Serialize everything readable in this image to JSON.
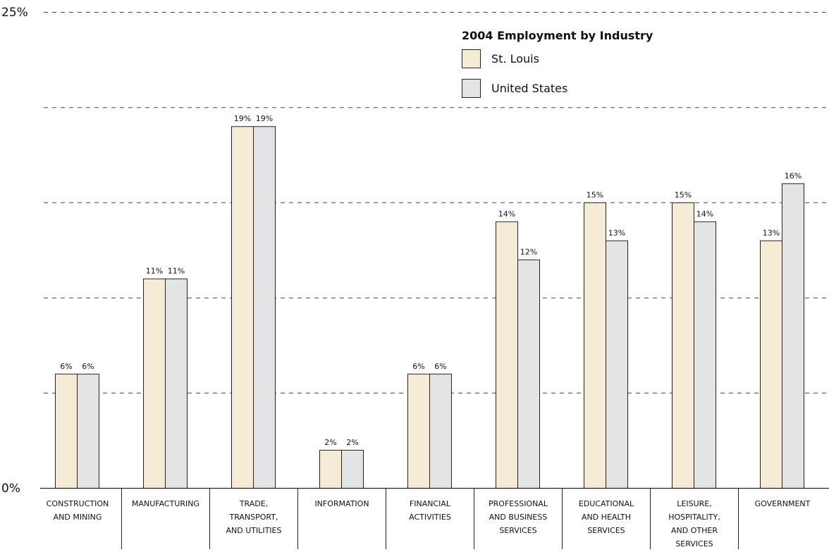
{
  "chart_data": {
    "type": "bar",
    "title": "",
    "xlabel": "",
    "ylabel": "",
    "ylim": [
      0,
      25
    ],
    "y_ticks_labeled": [
      "0%",
      "25%"
    ],
    "grid": "dashed horizontal",
    "legend": {
      "title": "2004 Employment by Industry",
      "placement": "top-right"
    },
    "categories": [
      [
        "CONSTRUCTION",
        "AND MINING"
      ],
      [
        "MANUFACTURING"
      ],
      [
        "TRADE,",
        "TRANSPORT,",
        "AND UTILITIES"
      ],
      [
        "INFORMATION"
      ],
      [
        "FINANCIAL",
        "ACTIVITIES"
      ],
      [
        "PROFESSIONAL",
        "AND BUSINESS",
        "SERVICES"
      ],
      [
        "EDUCATIONAL",
        "AND HEALTH",
        "SERVICES"
      ],
      [
        "LEISURE,",
        "HOSPITALITY,",
        "AND OTHER",
        "SERVICES"
      ],
      [
        "GOVERNMENT"
      ]
    ],
    "series": [
      {
        "name": "St. Louis",
        "color": "#f6ecd5",
        "values": [
          6,
          11,
          19,
          2,
          6,
          14,
          15,
          15,
          13
        ],
        "labels": [
          "6%",
          "11%",
          "19%",
          "2%",
          "6%",
          "14%",
          "15%",
          "15%",
          "13%"
        ]
      },
      {
        "name": "United States",
        "color": "#e3e4e6",
        "values": [
          6,
          11,
          19,
          2,
          6,
          12,
          13,
          14,
          16
        ],
        "labels": [
          "6%",
          "11%",
          "19%",
          "2%",
          "6%",
          "12%",
          "13%",
          "14%",
          "16%"
        ]
      }
    ]
  }
}
